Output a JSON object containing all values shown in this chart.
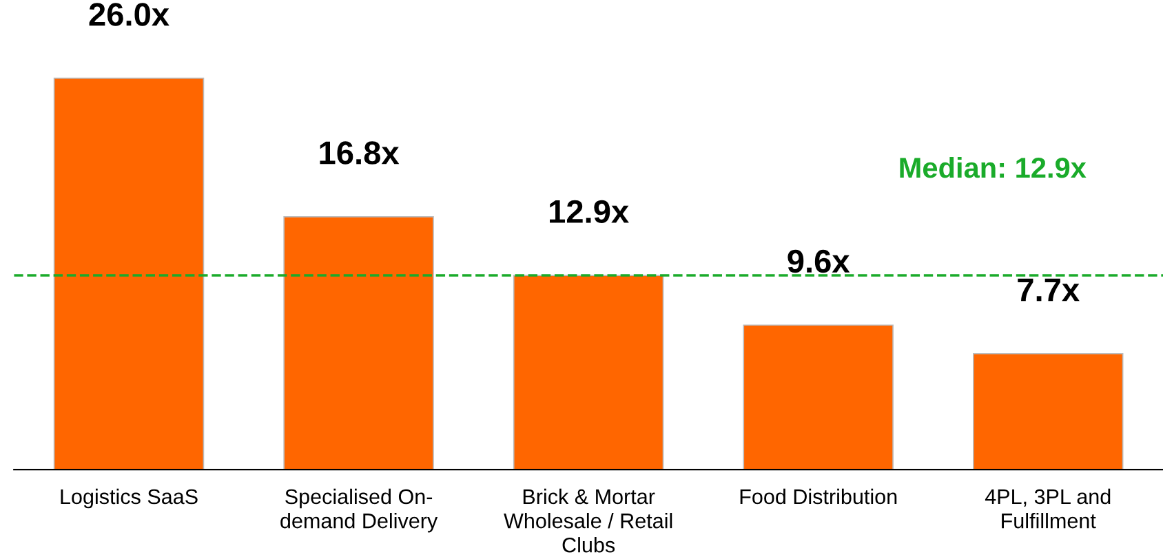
{
  "chart_data": {
    "type": "bar",
    "categories": [
      "Logistics SaaS",
      "Specialised On-\ndemand Delivery",
      "Brick & Mortar\nWholesale / Retail\nClubs",
      "Food Distribution",
      "4PL, 3PL and\nFulfillment"
    ],
    "values": [
      26.0,
      16.8,
      12.9,
      9.6,
      7.7
    ],
    "value_labels": [
      "26.0x",
      "16.8x",
      "12.9x",
      "9.6x",
      "7.7x"
    ],
    "color": "#ff6600",
    "ref_lines": [
      {
        "axis": "y",
        "value": 12.9,
        "label": "Median: 12.9x",
        "color": "#1aab2a",
        "line_style": "dashed"
      }
    ],
    "grid": false,
    "legend": false
  }
}
